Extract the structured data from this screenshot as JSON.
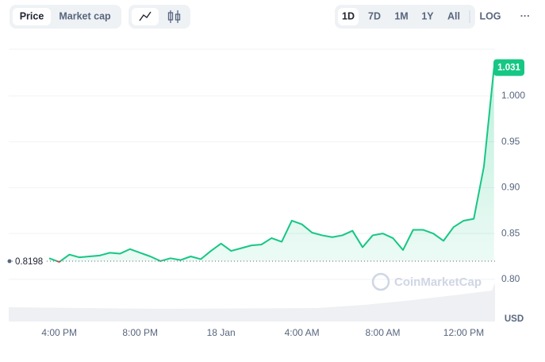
{
  "controls": {
    "views": [
      "Price",
      "Market cap"
    ],
    "ranges": [
      "1D",
      "7D",
      "1M",
      "1Y",
      "All"
    ],
    "scale": "LOG",
    "more": "···"
  },
  "watermark": "CoinMarketCap",
  "chart_data": {
    "type": "line",
    "x": [
      0,
      1,
      2,
      3,
      4,
      5,
      6,
      7,
      8,
      9,
      10,
      11,
      12,
      13,
      14,
      15,
      16,
      17,
      18,
      19,
      20,
      21,
      22,
      23,
      24,
      25,
      26,
      27,
      28,
      29,
      30,
      31,
      32,
      33,
      34,
      35,
      36,
      37,
      38,
      39,
      40,
      41,
      42,
      43,
      44
    ],
    "values": [
      0.823,
      0.819,
      0.827,
      0.824,
      0.825,
      0.826,
      0.829,
      0.828,
      0.833,
      0.829,
      0.825,
      0.82,
      0.823,
      0.821,
      0.825,
      0.822,
      0.831,
      0.839,
      0.831,
      0.834,
      0.837,
      0.838,
      0.845,
      0.841,
      0.864,
      0.86,
      0.851,
      0.848,
      0.846,
      0.848,
      0.853,
      0.835,
      0.848,
      0.85,
      0.845,
      0.832,
      0.854,
      0.854,
      0.85,
      0.842,
      0.857,
      0.864,
      0.866,
      0.923,
      1.031
    ],
    "color": "#16c784",
    "below_color": "#ea3943",
    "reference": 0.8198,
    "xlim": [
      -4,
      44.1
    ],
    "xticks": [
      {
        "value": 1,
        "label": "4:00 PM"
      },
      {
        "value": 9,
        "label": "8:00 PM"
      },
      {
        "value": 17,
        "label": "18 Jan"
      },
      {
        "value": 25,
        "label": "4:00 AM"
      },
      {
        "value": 33,
        "label": "8:00 AM"
      },
      {
        "value": 41,
        "label": "12:00 PM"
      }
    ],
    "ylim": [
      0.754,
      1.051
    ],
    "yticks": [
      {
        "value": 0.8,
        "label": "0.80"
      },
      {
        "value": 0.85,
        "label": "0.85"
      },
      {
        "value": 0.9,
        "label": "0.90"
      },
      {
        "value": 0.95,
        "label": "0.95"
      },
      {
        "value": 1.0,
        "label": "1.000"
      }
    ],
    "currency": "USD",
    "grid": true
  }
}
